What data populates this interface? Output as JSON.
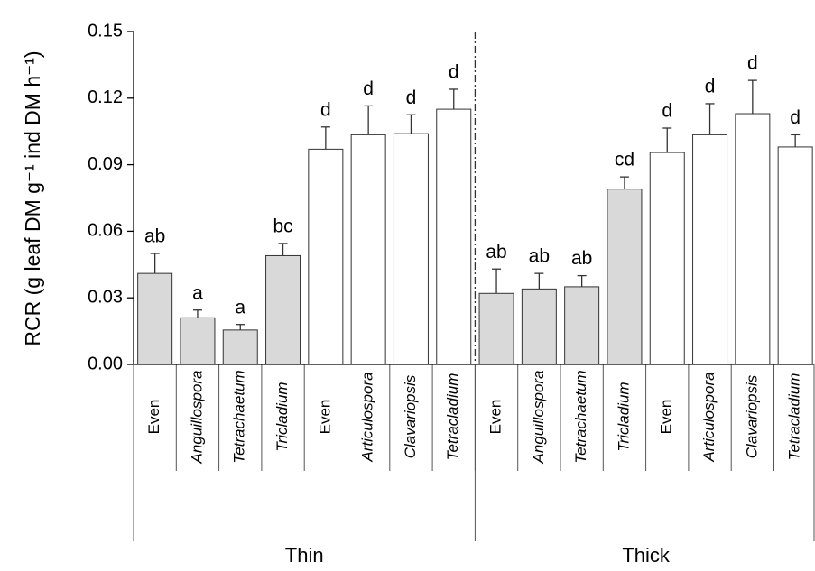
{
  "chart_data": {
    "type": "bar",
    "ylabel": "RCR (g leaf DM g⁻¹ ind DM h⁻¹)",
    "ylim": [
      0,
      0.15
    ],
    "yticks": [
      {
        "value": 0,
        "label": "0.00"
      },
      0.03,
      0.06,
      0.09,
      0.12,
      0.15
    ],
    "groups": [
      {
        "name": "Thin",
        "categories": [
          "Even",
          "Anguillospora",
          "Tetrachaetum",
          "Tricladium",
          "Even",
          "Articulospora",
          "Clavariopsis",
          "Tetracladium"
        ],
        "italic": [
          false,
          true,
          true,
          true,
          false,
          true,
          true,
          true
        ],
        "values": [
          0.041,
          0.021,
          0.0155,
          0.049,
          0.097,
          0.1035,
          0.104,
          0.115
        ],
        "errors": [
          0.009,
          0.0035,
          0.0025,
          0.0055,
          0.01,
          0.013,
          0.0085,
          0.009
        ],
        "letters": [
          "ab",
          "a",
          "a",
          "bc",
          "d",
          "d",
          "d",
          "d"
        ],
        "colors": [
          "#d9d9d9",
          "#d9d9d9",
          "#d9d9d9",
          "#d9d9d9",
          "#ffffff",
          "#ffffff",
          "#ffffff",
          "#ffffff"
        ]
      },
      {
        "name": "Thick",
        "categories": [
          "Even",
          "Anguillospora",
          "Tetrachaetum",
          "Tricladium",
          "Even",
          "Articulospora",
          "Clavariopsis",
          "Tetracladium"
        ],
        "italic": [
          false,
          true,
          true,
          true,
          false,
          true,
          true,
          true
        ],
        "values": [
          0.032,
          0.034,
          0.035,
          0.079,
          0.0955,
          0.1035,
          0.113,
          0.098
        ],
        "errors": [
          0.011,
          0.007,
          0.005,
          0.0055,
          0.011,
          0.014,
          0.015,
          0.0055
        ],
        "letters": [
          "ab",
          "ab",
          "ab",
          "cd",
          "d",
          "d",
          "d",
          "d"
        ],
        "colors": [
          "#d9d9d9",
          "#d9d9d9",
          "#d9d9d9",
          "#d9d9d9",
          "#ffffff",
          "#ffffff",
          "#ffffff",
          "#ffffff"
        ]
      }
    ]
  }
}
